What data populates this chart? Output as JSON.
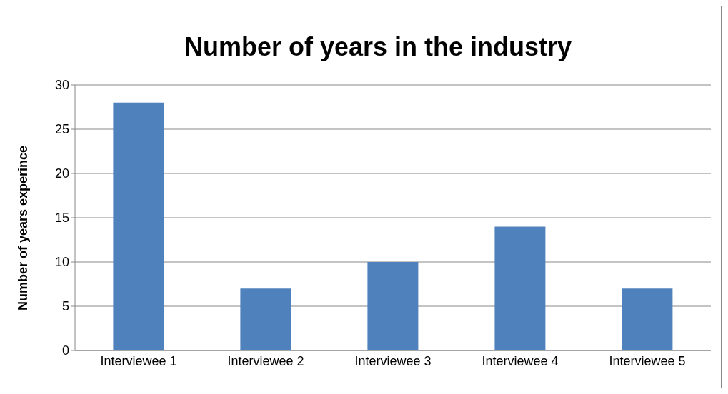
{
  "chart_data": {
    "type": "bar",
    "title": "Number of years in the industry",
    "ylabel": "Number of years experince",
    "categories": [
      "Interviewee 1",
      "Interviewee 2",
      "Interviewee 3",
      "Interviewee 4",
      "Interviewee 5"
    ],
    "values": [
      28,
      7,
      10,
      14,
      7
    ],
    "color": "#4f81bd",
    "ylim": [
      0,
      30
    ],
    "yticks": [
      0,
      5,
      10,
      15,
      20,
      25,
      30
    ],
    "grid": "y"
  }
}
